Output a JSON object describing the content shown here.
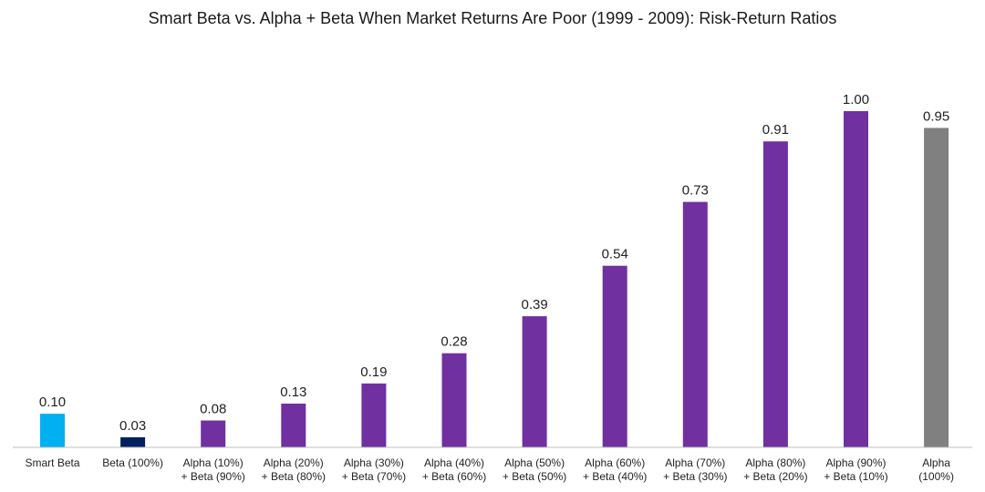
{
  "chart_data": {
    "type": "bar",
    "title": "Smart Beta vs. Alpha + Beta When Market Returns Are Poor (1999 - 2009): Risk-Return Ratios",
    "xlabel": "",
    "ylabel": "",
    "ylim": [
      0,
      1.1
    ],
    "grid": false,
    "legend": "none",
    "categories": [
      [
        "Smart Beta"
      ],
      [
        "Beta (100%)"
      ],
      [
        "Alpha (10%)",
        "+ Beta (90%)"
      ],
      [
        "Alpha (20%)",
        "+ Beta (80%)"
      ],
      [
        "Alpha (30%)",
        "+ Beta (70%)"
      ],
      [
        "Alpha (40%)",
        "+ Beta (60%)"
      ],
      [
        "Alpha (50%)",
        "+ Beta (50%)"
      ],
      [
        "Alpha (60%)",
        "+ Beta (40%)"
      ],
      [
        "Alpha (70%)",
        "+ Beta (30%)"
      ],
      [
        "Alpha (80%)",
        "+ Beta (20%)"
      ],
      [
        "Alpha (90%)",
        "+ Beta (10%)"
      ],
      [
        "Alpha",
        "(100%)"
      ]
    ],
    "values": [
      0.1,
      0.03,
      0.08,
      0.13,
      0.19,
      0.28,
      0.39,
      0.54,
      0.73,
      0.91,
      1.0,
      0.95
    ],
    "data_labels": [
      "0.10",
      "0.03",
      "0.08",
      "0.13",
      "0.19",
      "0.28",
      "0.39",
      "0.54",
      "0.73",
      "0.91",
      "1.00",
      "0.95"
    ],
    "colors": [
      "#00b0f0",
      "#002060",
      "#7030a0",
      "#7030a0",
      "#7030a0",
      "#7030a0",
      "#7030a0",
      "#7030a0",
      "#7030a0",
      "#7030a0",
      "#7030a0",
      "#808080"
    ]
  }
}
